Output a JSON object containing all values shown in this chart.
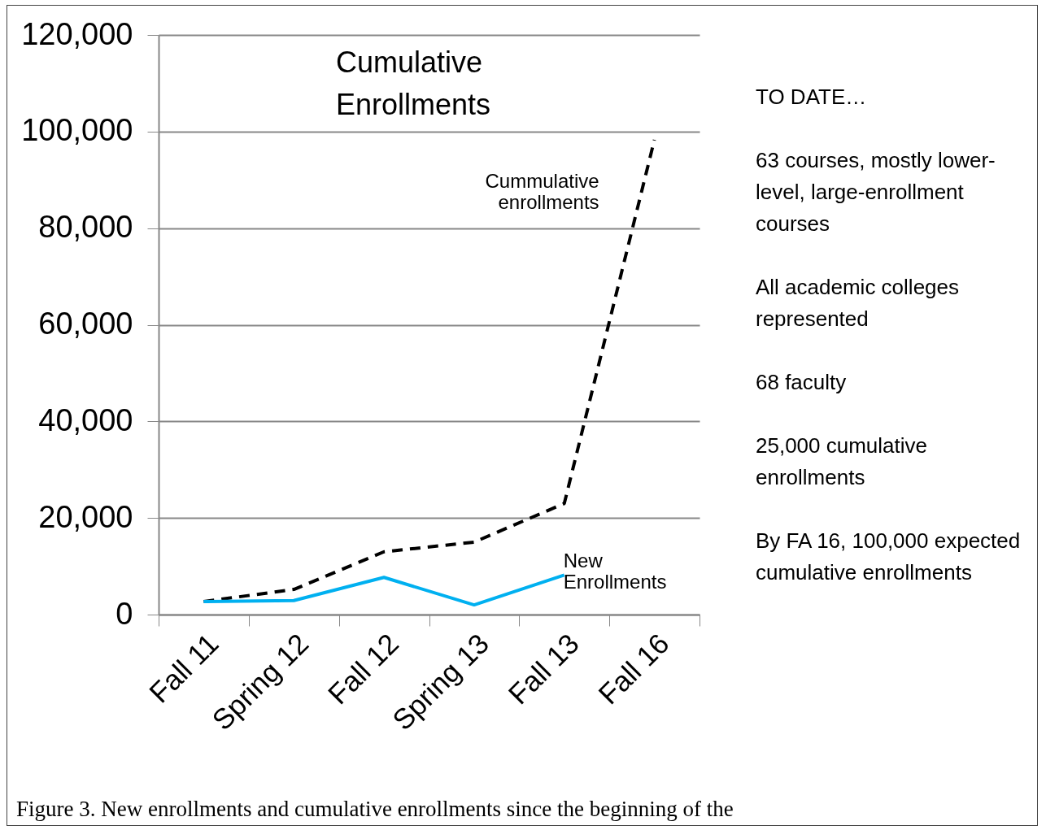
{
  "chart_data": {
    "type": "line",
    "title": "Cumulative Enrollments",
    "categories": [
      "Fall 11",
      "Spring 12",
      "Fall 12",
      "Spring 13",
      "Fall 13",
      "Fall 16"
    ],
    "series": [
      {
        "name": "Cummulative enrollments",
        "color": "#000000",
        "line_style": "dashed",
        "values": [
          2700,
          5200,
          13000,
          15000,
          23000,
          98300
        ]
      },
      {
        "name": "New Enrollments",
        "color": "#00b0f0",
        "line_style": "solid",
        "values": [
          2700,
          2900,
          7700,
          2000,
          8200,
          null
        ]
      }
    ],
    "ylim": [
      0,
      120000
    ],
    "yticks": [
      0,
      {
        "value": 20000,
        "label": "20,000"
      },
      {
        "value": 40000,
        "label": "40,000"
      },
      {
        "value": 60000,
        "label": "60,000"
      },
      {
        "value": 80000,
        "label": "80,000"
      },
      {
        "value": 100000,
        "label": "100,000"
      },
      {
        "value": 120000,
        "label": "120,000"
      }
    ],
    "grid": "y",
    "marker": "none",
    "legend": false,
    "annotations": [
      "TO DATE…",
      "63 courses, mostly lower-level, large-enrollment courses",
      "All academic colleges represented",
      "68 faculty",
      "25,000 cumulative enrollments",
      "By FA 16, 100,000 expected cumulative enrollments",
      "Figure 3.  New enrollments and cumulative enrollments since the beginning of the"
    ]
  }
}
